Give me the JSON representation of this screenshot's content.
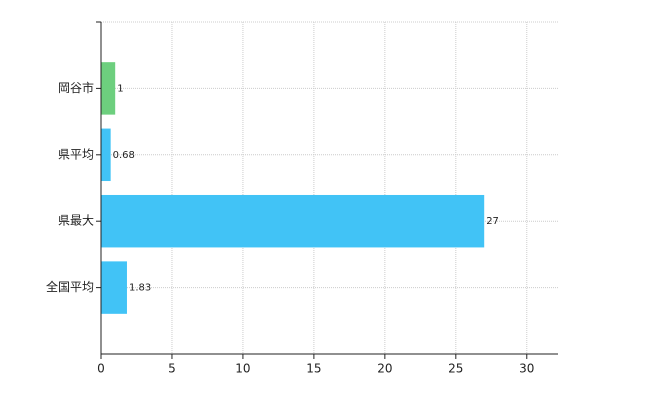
{
  "chart_data": {
    "type": "bar",
    "orientation": "horizontal",
    "categories": [
      "岡谷市",
      "県平均",
      "県最大",
      "全国平均"
    ],
    "values": [
      1,
      0.68,
      27,
      1.83
    ],
    "colors": [
      "#6dcf7e",
      "#41c3f6",
      "#41c3f6",
      "#41c3f6"
    ],
    "xlim": [
      0,
      32.2
    ],
    "xticks": [
      0,
      5,
      10,
      15,
      20,
      25,
      30
    ],
    "grid": true
  }
}
